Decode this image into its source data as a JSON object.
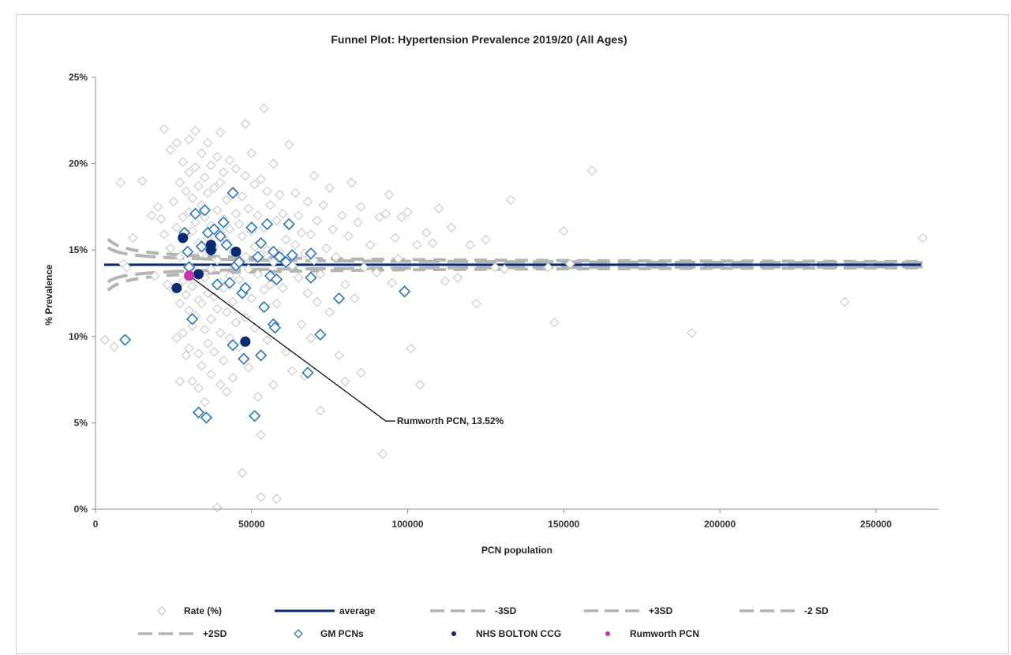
{
  "chart_data": {
    "type": "scatter",
    "title": "Funnel Plot: Hypertension Prevalence 2019/20 (All Ages)",
    "xlabel": "PCN population",
    "ylabel": "% Prevalence",
    "xlim": [
      0,
      270000
    ],
    "ylim": [
      0,
      25
    ],
    "x_ticks": [
      0,
      50000,
      100000,
      150000,
      200000,
      250000
    ],
    "x_tick_labels": [
      "0",
      "50000",
      "100000",
      "150000",
      "200000",
      "250000"
    ],
    "y_ticks": [
      0,
      5,
      10,
      15,
      20,
      25
    ],
    "y_tick_labels": [
      "0%",
      "5%",
      "10%",
      "15%",
      "20%",
      "25%"
    ],
    "grid": false,
    "legend_placement": "bottom",
    "average": 14.15,
    "limits": {
      "sd2_coef": 62.6,
      "sd3_coef": 94.0,
      "x_start": 4000,
      "x_end": 265000
    },
    "series": [
      {
        "name": "Rate (%)",
        "kind": "rate",
        "color": "#c8c8c8",
        "points": [
          [
            3000,
            9.8
          ],
          [
            6000,
            9.4
          ],
          [
            8000,
            18.9
          ],
          [
            9000,
            14.2
          ],
          [
            10000,
            14.0
          ],
          [
            12000,
            15.7
          ],
          [
            15000,
            19.0
          ],
          [
            18000,
            17.0
          ],
          [
            19000,
            13.5
          ],
          [
            20000,
            17.5
          ],
          [
            21000,
            16.8
          ],
          [
            22000,
            15.9
          ],
          [
            22000,
            22.0
          ],
          [
            23000,
            13.0
          ],
          [
            24000,
            20.8
          ],
          [
            24000,
            15.1
          ],
          [
            25000,
            17.8
          ],
          [
            25000,
            12.7
          ],
          [
            26000,
            21.2
          ],
          [
            26000,
            16.3
          ],
          [
            26000,
            9.9
          ],
          [
            27000,
            18.9
          ],
          [
            27000,
            14.6
          ],
          [
            27000,
            11.9
          ],
          [
            27000,
            7.4
          ],
          [
            28000,
            20.1
          ],
          [
            28000,
            16.9
          ],
          [
            28000,
            13.2
          ],
          [
            28000,
            10.2
          ],
          [
            29000,
            18.4
          ],
          [
            29000,
            15.8
          ],
          [
            29000,
            12.4
          ],
          [
            29000,
            8.9
          ],
          [
            30000,
            21.4
          ],
          [
            30000,
            19.5
          ],
          [
            30000,
            17.2
          ],
          [
            30000,
            14.1
          ],
          [
            30000,
            11.5
          ],
          [
            30000,
            9.3
          ],
          [
            31000,
            18.0
          ],
          [
            31000,
            16.1
          ],
          [
            31000,
            12.9
          ],
          [
            31000,
            10.6
          ],
          [
            31000,
            7.4
          ],
          [
            32000,
            21.9
          ],
          [
            32000,
            19.8
          ],
          [
            32000,
            16.6
          ],
          [
            32000,
            13.7
          ],
          [
            32000,
            11.2
          ],
          [
            33000,
            18.7
          ],
          [
            33000,
            15.4
          ],
          [
            33000,
            12.1
          ],
          [
            33000,
            9.0
          ],
          [
            33000,
            7.0
          ],
          [
            34000,
            20.6
          ],
          [
            34000,
            17.6
          ],
          [
            34000,
            14.8
          ],
          [
            34000,
            11.9
          ],
          [
            34000,
            8.3
          ],
          [
            35000,
            19.2
          ],
          [
            35000,
            16.9
          ],
          [
            35000,
            13.4
          ],
          [
            35000,
            10.4
          ],
          [
            35000,
            6.2
          ],
          [
            36000,
            21.2
          ],
          [
            36000,
            18.3
          ],
          [
            36000,
            15.7
          ],
          [
            36000,
            12.5
          ],
          [
            36000,
            9.6
          ],
          [
            37000,
            19.9
          ],
          [
            37000,
            16.4
          ],
          [
            37000,
            13.9
          ],
          [
            37000,
            11.0
          ],
          [
            37000,
            7.8
          ],
          [
            38000,
            18.6
          ],
          [
            38000,
            15.2
          ],
          [
            38000,
            12.3
          ],
          [
            38000,
            9.1
          ],
          [
            39000,
            20.4
          ],
          [
            39000,
            17.3
          ],
          [
            39000,
            14.4
          ],
          [
            39000,
            11.6
          ],
          [
            39000,
            0.1
          ],
          [
            40000,
            21.8
          ],
          [
            40000,
            18.9
          ],
          [
            40000,
            16.0
          ],
          [
            40000,
            13.1
          ],
          [
            40000,
            10.2
          ],
          [
            40000,
            7.2
          ],
          [
            41000,
            19.5
          ],
          [
            41000,
            16.8
          ],
          [
            41000,
            12.8
          ],
          [
            41000,
            8.6
          ],
          [
            42000,
            17.9
          ],
          [
            42000,
            15.5
          ],
          [
            42000,
            11.4
          ],
          [
            42000,
            6.8
          ],
          [
            43000,
            20.2
          ],
          [
            43000,
            16.2
          ],
          [
            43000,
            13.5
          ],
          [
            43000,
            9.9
          ],
          [
            44000,
            18.4
          ],
          [
            44000,
            14.9
          ],
          [
            44000,
            12.0
          ],
          [
            44000,
            7.6
          ],
          [
            45000,
            19.7
          ],
          [
            45000,
            17.1
          ],
          [
            45000,
            14.0
          ],
          [
            45000,
            10.8
          ],
          [
            46000,
            16.5
          ],
          [
            46000,
            13.3
          ],
          [
            46000,
            9.4
          ],
          [
            47000,
            18.1
          ],
          [
            47000,
            15.8
          ],
          [
            47000,
            12.6
          ],
          [
            47000,
            2.1
          ],
          [
            48000,
            22.3
          ],
          [
            48000,
            19.3
          ],
          [
            48000,
            14.6
          ],
          [
            48000,
            11.1
          ],
          [
            49000,
            17.4
          ],
          [
            49000,
            13.9
          ],
          [
            49000,
            8.2
          ],
          [
            50000,
            20.6
          ],
          [
            50000,
            16.1
          ],
          [
            50000,
            12.2
          ],
          [
            51000,
            18.8
          ],
          [
            51000,
            15.2
          ],
          [
            51000,
            10.5
          ],
          [
            52000,
            17.0
          ],
          [
            52000,
            13.6
          ],
          [
            52000,
            6.5
          ],
          [
            53000,
            19.1
          ],
          [
            53000,
            14.7
          ],
          [
            53000,
            4.3
          ],
          [
            53000,
            0.7
          ],
          [
            54000,
            23.2
          ],
          [
            54000,
            16.3
          ],
          [
            54000,
            12.7
          ],
          [
            55000,
            18.4
          ],
          [
            55000,
            15.0
          ],
          [
            55000,
            9.8
          ],
          [
            56000,
            17.6
          ],
          [
            56000,
            13.0
          ],
          [
            57000,
            20.0
          ],
          [
            57000,
            14.3
          ],
          [
            57000,
            7.2
          ],
          [
            58000,
            16.7
          ],
          [
            58000,
            11.9
          ],
          [
            58000,
            0.6
          ],
          [
            59000,
            18.2
          ],
          [
            59000,
            14.9
          ],
          [
            60000,
            17.1
          ],
          [
            60000,
            12.8
          ],
          [
            61000,
            15.6
          ],
          [
            61000,
            9.1
          ],
          [
            62000,
            21.1
          ],
          [
            62000,
            16.4
          ],
          [
            63000,
            14.1
          ],
          [
            63000,
            8.0
          ],
          [
            64000,
            18.3
          ],
          [
            64000,
            15.3
          ],
          [
            65000,
            17.0
          ],
          [
            65000,
            13.4
          ],
          [
            66000,
            16.0
          ],
          [
            66000,
            10.7
          ],
          [
            67000,
            14.8
          ],
          [
            67000,
            7.7
          ],
          [
            68000,
            17.8
          ],
          [
            68000,
            12.5
          ],
          [
            69000,
            15.9
          ],
          [
            69000,
            9.9
          ],
          [
            70000,
            19.3
          ],
          [
            70000,
            14.4
          ],
          [
            71000,
            16.7
          ],
          [
            71000,
            12.0
          ],
          [
            72000,
            13.6
          ],
          [
            72000,
            5.7
          ],
          [
            73000,
            17.6
          ],
          [
            74000,
            15.1
          ],
          [
            75000,
            18.6
          ],
          [
            75000,
            11.4
          ],
          [
            76000,
            16.2
          ],
          [
            77000,
            14.6
          ],
          [
            78000,
            8.9
          ],
          [
            79000,
            17.0
          ],
          [
            80000,
            13.0
          ],
          [
            80000,
            7.4
          ],
          [
            81000,
            15.8
          ],
          [
            82000,
            18.9
          ],
          [
            83000,
            12.2
          ],
          [
            84000,
            16.6
          ],
          [
            85000,
            17.5
          ],
          [
            85000,
            7.9
          ],
          [
            86000,
            14.0
          ],
          [
            88000,
            15.3
          ],
          [
            90000,
            13.7
          ],
          [
            91000,
            16.9
          ],
          [
            92000,
            3.2
          ],
          [
            93000,
            17.1
          ],
          [
            94000,
            18.2
          ],
          [
            95000,
            13.1
          ],
          [
            96000,
            15.7
          ],
          [
            97000,
            14.5
          ],
          [
            98000,
            16.9
          ],
          [
            100000,
            17.2
          ],
          [
            101000,
            9.3
          ],
          [
            103000,
            15.3
          ],
          [
            104000,
            7.2
          ],
          [
            106000,
            16.0
          ],
          [
            108000,
            15.4
          ],
          [
            110000,
            17.4
          ],
          [
            112000,
            13.2
          ],
          [
            114000,
            16.3
          ],
          [
            116000,
            13.4
          ],
          [
            120000,
            15.3
          ],
          [
            122000,
            11.9
          ],
          [
            125000,
            15.6
          ],
          [
            128000,
            14.0
          ],
          [
            131000,
            13.9
          ],
          [
            133000,
            17.9
          ],
          [
            145000,
            14.0
          ],
          [
            147000,
            10.8
          ],
          [
            150000,
            16.1
          ],
          [
            152000,
            14.2
          ],
          [
            159000,
            19.6
          ],
          [
            191000,
            10.2
          ],
          [
            240000,
            12.0
          ],
          [
            265000,
            15.7
          ]
        ]
      },
      {
        "name": "GM PCNs",
        "kind": "gm",
        "color": "#2e75b6",
        "points": [
          [
            9500,
            9.8
          ],
          [
            28500,
            16.0
          ],
          [
            29500,
            14.9
          ],
          [
            30000,
            14.0
          ],
          [
            31000,
            11.0
          ],
          [
            32000,
            17.1
          ],
          [
            33000,
            5.6
          ],
          [
            34000,
            15.2
          ],
          [
            35000,
            17.3
          ],
          [
            35500,
            5.3
          ],
          [
            36000,
            16.0
          ],
          [
            37000,
            15.0
          ],
          [
            38000,
            16.2
          ],
          [
            39000,
            13.0
          ],
          [
            40000,
            15.8
          ],
          [
            41000,
            16.6
          ],
          [
            42000,
            15.3
          ],
          [
            43000,
            13.1
          ],
          [
            44000,
            18.3
          ],
          [
            44000,
            9.5
          ],
          [
            45000,
            14.1
          ],
          [
            46000,
            14.3
          ],
          [
            47000,
            12.5
          ],
          [
            47500,
            8.7
          ],
          [
            48000,
            12.8
          ],
          [
            50000,
            16.3
          ],
          [
            51000,
            5.4
          ],
          [
            52000,
            14.6
          ],
          [
            53000,
            15.4
          ],
          [
            53000,
            8.9
          ],
          [
            54000,
            11.7
          ],
          [
            55000,
            16.5
          ],
          [
            56000,
            13.5
          ],
          [
            57000,
            14.9
          ],
          [
            57000,
            10.7
          ],
          [
            57500,
            10.5
          ],
          [
            58000,
            13.3
          ],
          [
            59000,
            14.6
          ],
          [
            61000,
            14.3
          ],
          [
            62000,
            16.5
          ],
          [
            63000,
            14.7
          ],
          [
            68000,
            7.9
          ],
          [
            69000,
            13.4
          ],
          [
            69000,
            14.8
          ],
          [
            72000,
            10.1
          ],
          [
            78000,
            12.2
          ],
          [
            99000,
            12.6
          ]
        ]
      },
      {
        "name": "NHS BOLTON CCG",
        "kind": "ccg",
        "color": "#0b2a6f",
        "points": [
          [
            26000,
            12.8
          ],
          [
            28000,
            15.7
          ],
          [
            33000,
            13.6
          ],
          [
            37000,
            15.0
          ],
          [
            37000,
            15.3
          ],
          [
            45000,
            14.9
          ],
          [
            48000,
            9.7
          ]
        ]
      },
      {
        "name": "Rumworth PCN",
        "kind": "rum",
        "color": "#cc33aa",
        "points": [
          [
            30000,
            13.52
          ]
        ]
      }
    ],
    "annotation": {
      "text": "Rumworth PCN, 13.52%",
      "point": [
        30000,
        13.52
      ],
      "elbow": [
        93000,
        5.1
      ]
    },
    "legend": [
      {
        "label": "Rate (%)",
        "kind": "rate"
      },
      {
        "label": "average",
        "kind": "avg"
      },
      {
        "label": "-3SD",
        "kind": "dash"
      },
      {
        "label": "+3SD",
        "kind": "dash"
      },
      {
        "label": "-2 SD",
        "kind": "dash"
      },
      {
        "label": "+2SD",
        "kind": "dash"
      },
      {
        "label": "GM PCNs",
        "kind": "gm"
      },
      {
        "label": "NHS BOLTON CCG",
        "kind": "ccg"
      },
      {
        "label": "Rumworth PCN",
        "kind": "rum"
      }
    ],
    "colors": {
      "average": "#0b2a6f",
      "limits": "#b4b4b4",
      "axis": "#8c8c8c"
    }
  }
}
